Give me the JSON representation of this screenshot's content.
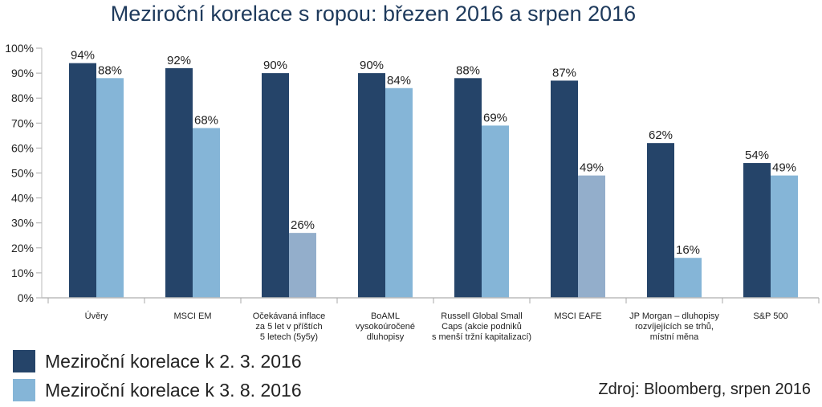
{
  "chart_data": {
    "type": "bar",
    "title": "Meziroční korelace s ropou: březen 2016 a srpen 2016",
    "categories": [
      [
        "Úvěry"
      ],
      [
        "MSCI EM"
      ],
      [
        "Očekávaná inflace",
        "za 5 let v příštích",
        "5 letech (5y5y)"
      ],
      [
        "BoAML",
        "vysokoúročené",
        "dluhopisy"
      ],
      [
        "Russell Global Small",
        "Caps (akcie podniků",
        "s menší tržní kapitalizací)"
      ],
      [
        "MSCI EAFE"
      ],
      [
        "JP Morgan – dluhopisy",
        "rozvíjejících se trhů,",
        "místní měna"
      ],
      [
        "S&P 500"
      ]
    ],
    "series": [
      {
        "name": "Meziroční korelace k 2. 3. 2016",
        "color": "#254469",
        "values": [
          94,
          92,
          90,
          90,
          88,
          87,
          62,
          54
        ]
      },
      {
        "name": "Meziroční korelace k 3. 8. 2016",
        "color": "#85b5d7",
        "values": [
          88,
          68,
          26,
          84,
          69,
          49,
          16,
          49
        ]
      }
    ],
    "highlight_color": "#93aecb",
    "highlighted_points": [
      [
        1,
        2
      ],
      [
        1,
        5
      ]
    ],
    "ylim": [
      0,
      100
    ],
    "yticks": [
      0,
      10,
      20,
      30,
      40,
      50,
      60,
      70,
      80,
      90,
      100
    ],
    "value_suffix": "%",
    "grid": false,
    "legend_position": "bottom-left",
    "source": "Zdroj: Bloomberg, srpen 2016"
  }
}
